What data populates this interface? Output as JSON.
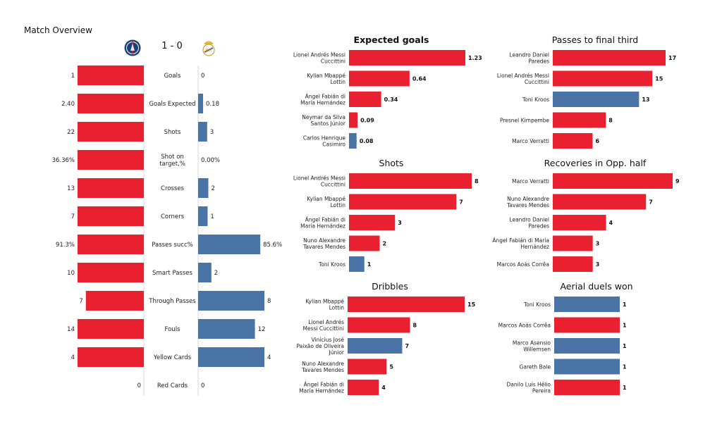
{
  "overview": {
    "title": "Match Overview",
    "score": "1 - 0",
    "home_crest_icon": "psg-crest-icon",
    "away_crest_icon": "real-madrid-crest-icon"
  },
  "colors": {
    "home": "#e8202f",
    "away": "#4a74a6"
  },
  "chart_data": [
    {
      "type": "bar",
      "orientation": "horizontal-diverging",
      "title": "",
      "categories": [
        "Goals",
        "Goals Expected",
        "Shots",
        "Shot on target,%",
        "Crosses",
        "Corners",
        "Passes succ%",
        "Smart Passes",
        "Through Passes",
        "Fouls",
        "Yellow Cards",
        "Red Cards"
      ],
      "series": [
        {
          "values": [
            1,
            2.4,
            22,
            36.36,
            13,
            7,
            91.3,
            10,
            7,
            14,
            4,
            0
          ],
          "labels": [
            "1",
            "2.40",
            "22",
            "36.36%",
            "13",
            "7",
            "91.3%",
            "10",
            "7",
            "14",
            "4",
            "0"
          ]
        },
        {
          "values": [
            0,
            0.18,
            3,
            0.0,
            2,
            1,
            85.6,
            2,
            8,
            12,
            4,
            0
          ],
          "labels": [
            "0",
            "0.18",
            "3",
            "0.00%",
            "2",
            "1",
            "85.6%",
            "2",
            "8",
            "12",
            "4",
            "0"
          ]
        }
      ]
    },
    {
      "type": "bar",
      "orientation": "horizontal",
      "title": "Expected goals",
      "categories": [
        "Lionel Andrés Messi Cuccittini",
        "Kylian Mbappé Lottin",
        "Ángel Fabián di María Hernández",
        "Neymar da Silva Santos Júnior",
        "Carlos Henrique Casimiro"
      ],
      "display": [
        "Lionel Andrés Messi|Cuccittini",
        "Kylian Mbappé|Lottin",
        "Ángel Fabián di|María Hernández",
        "Neymar da Silva|Santos Júnior",
        "Carlos Henrique|Casimiro"
      ],
      "values": [
        1.23,
        0.64,
        0.34,
        0.09,
        0.08
      ],
      "labels": [
        "1.23",
        "0.64",
        "0.34",
        "0.09",
        "0.08"
      ],
      "team": [
        "home",
        "home",
        "home",
        "home",
        "away"
      ]
    },
    {
      "type": "bar",
      "orientation": "horizontal",
      "title": "Passes to final third",
      "categories": [
        "Leandro Daniel Paredes",
        "Lionel Andrés Messi Cuccittini",
        "Toni Kroos",
        "Presnel Kimpembe",
        "Marco Verratti"
      ],
      "display": [
        "Leandro Daniel|Paredes",
        "Lionel Andrés Messi|Cuccittini",
        "Toni Kroos",
        "Presnel Kimpembe",
        "Marco Verratti"
      ],
      "values": [
        17,
        15,
        13,
        8,
        6
      ],
      "labels": [
        "17",
        "15",
        "13",
        "8",
        "6"
      ],
      "team": [
        "home",
        "home",
        "away",
        "home",
        "home"
      ]
    },
    {
      "type": "bar",
      "orientation": "horizontal",
      "title": "Shots",
      "categories": [
        "Lionel Andrés Messi Cuccittini",
        "Kylian Mbappé Lottin",
        "Ángel Fabián di María Hernández",
        "Nuno Alexandre Tavares Mendes",
        "Toni Kroos"
      ],
      "display": [
        "Lionel Andrés Messi|Cuccittini",
        "Kylian Mbappé|Lottin",
        "Ángel Fabián di|María Hernández",
        "Nuno Alexandre|Tavares Mendes",
        "Toni Kroos"
      ],
      "values": [
        8,
        7,
        3,
        2,
        1
      ],
      "labels": [
        "8",
        "7",
        "3",
        "2",
        "1"
      ],
      "team": [
        "home",
        "home",
        "home",
        "home",
        "away"
      ]
    },
    {
      "type": "bar",
      "orientation": "horizontal",
      "title": "Recoveries in Opp. half",
      "categories": [
        "Marco Verratti",
        "Nuno Alexandre Tavares Mendes",
        "Leandro Daniel Paredes",
        "Ángel Fabián di María Hernández",
        "Marcos Aoás Corrêa"
      ],
      "display": [
        "Marco Verratti",
        "Nuno Alexandre|Tavares Mendes",
        "Leandro Daniel|Paredes",
        "Ángel Fabián di María|Hernández",
        "Marcos Aoás Corrêa"
      ],
      "values": [
        9,
        7,
        4,
        3,
        3
      ],
      "labels": [
        "9",
        "7",
        "4",
        "3",
        "3"
      ],
      "team": [
        "home",
        "home",
        "home",
        "home",
        "home"
      ]
    },
    {
      "type": "bar",
      "orientation": "horizontal",
      "title": "Dribbles",
      "categories": [
        "Kylian Mbappé Lottin",
        "Lionel Andrés Messi Cuccittini",
        "Vinícius José Paixão de Oliveira Júnior",
        "Nuno Alexandre Tavares Mendes",
        "Ángel Fabián di María Hernández"
      ],
      "display": [
        "Kylian Mbappé|Lottin",
        "Lionel Andrés|Messi Cuccittini",
        "Vinícius José|Paixão de Oliveira|Júnior",
        "Nuno Alexandre|Tavares Mendes",
        "Ángel Fabián di|María Hernández"
      ],
      "values": [
        15,
        8,
        7,
        5,
        4
      ],
      "labels": [
        "15",
        "8",
        "7",
        "5",
        "4"
      ],
      "team": [
        "home",
        "home",
        "away",
        "home",
        "home"
      ]
    },
    {
      "type": "bar",
      "orientation": "horizontal",
      "title": "Aerial duels won",
      "categories": [
        "Toni Kroos",
        "Marcos Aoás Corrêa",
        "Marco Asensio Willemsen",
        "Gareth Bale",
        "Danilo Luís Hélio Pereira"
      ],
      "display": [
        "Toni Kroos",
        "Marcos Aoás Corrêa",
        "Marco Asensio|Willemsen",
        "Gareth Bale",
        "Danilo Luís Hélio|Pereira"
      ],
      "values": [
        1,
        1,
        1,
        1,
        1
      ],
      "labels": [
        "1",
        "1",
        "1",
        "1",
        "1"
      ],
      "team": [
        "away",
        "home",
        "away",
        "away",
        "home"
      ]
    }
  ]
}
